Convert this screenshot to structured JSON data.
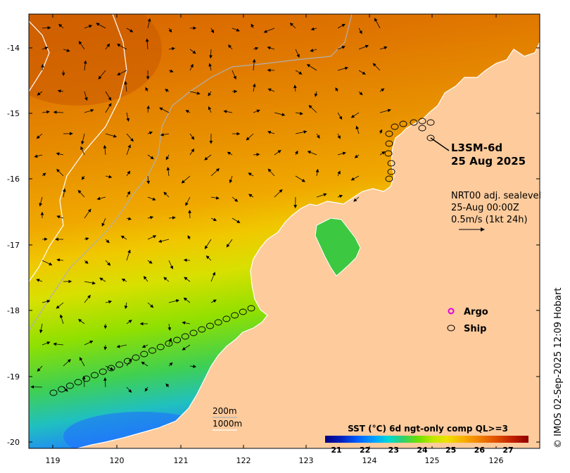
{
  "map": {
    "lon_ticks": [
      "119",
      "120",
      "121",
      "122",
      "123",
      "124",
      "125",
      "126"
    ],
    "lat_ticks": [
      "-14",
      "-15",
      "-16",
      "-17",
      "-18",
      "-19",
      "-20"
    ],
    "product": "L3SM-6d",
    "date": "25 Aug 2025",
    "current_title": "NRT00 adj. sealevel",
    "current_time": "25-Aug 00:00Z",
    "current_scale": "0.5m/s (1kt 24h)",
    "isobath_1": "200m",
    "isobath_2": "1000m",
    "credit": "© IMOS 02-Sep-2025 12:09 Hobart",
    "land_color": "#fdcb9c"
  },
  "legend": {
    "argo_label": "Argo",
    "argo_color": "#e000e0",
    "ship_label": "Ship"
  },
  "colorbar": {
    "title": "SST (°C) 6d ngt-only comp QL>=3",
    "ticks": [
      "21",
      "22",
      "23",
      "24",
      "25",
      "26",
      "27"
    ],
    "colors": [
      "#000080",
      "#0020c0",
      "#0060ff",
      "#00a0ff",
      "#00d8d8",
      "#30d070",
      "#70e000",
      "#c0e800",
      "#f0e000",
      "#f8b000",
      "#f08000",
      "#e05000",
      "#c02000",
      "#900000"
    ]
  }
}
